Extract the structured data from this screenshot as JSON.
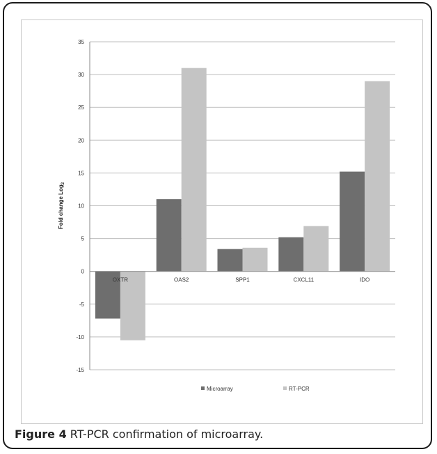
{
  "figure": {
    "label": "Figure 4",
    "caption": "RT-PCR confirmation of microarray",
    "caption_end": "."
  },
  "chart_data": {
    "type": "bar",
    "title": "",
    "xlabel": "",
    "ylabel": "Fold change Log",
    "ylabel_subscript": "2",
    "categories": [
      "OXTR",
      "OAS2",
      "SPP1",
      "CXCL11",
      "IDO"
    ],
    "series": [
      {
        "name": "Microarray",
        "values": [
          -7.2,
          11.0,
          3.4,
          5.2,
          15.2
        ],
        "color": "#6e6e6e"
      },
      {
        "name": "RT-PCR",
        "values": [
          -10.5,
          31.0,
          3.6,
          6.9,
          29.0
        ],
        "color": "#c4c4c4"
      }
    ],
    "ylim": [
      -15,
      35
    ],
    "yticks": [
      -15,
      -10,
      -5,
      0,
      5,
      10,
      15,
      20,
      25,
      30,
      35
    ],
    "grid": true,
    "legend_position": "bottom"
  }
}
